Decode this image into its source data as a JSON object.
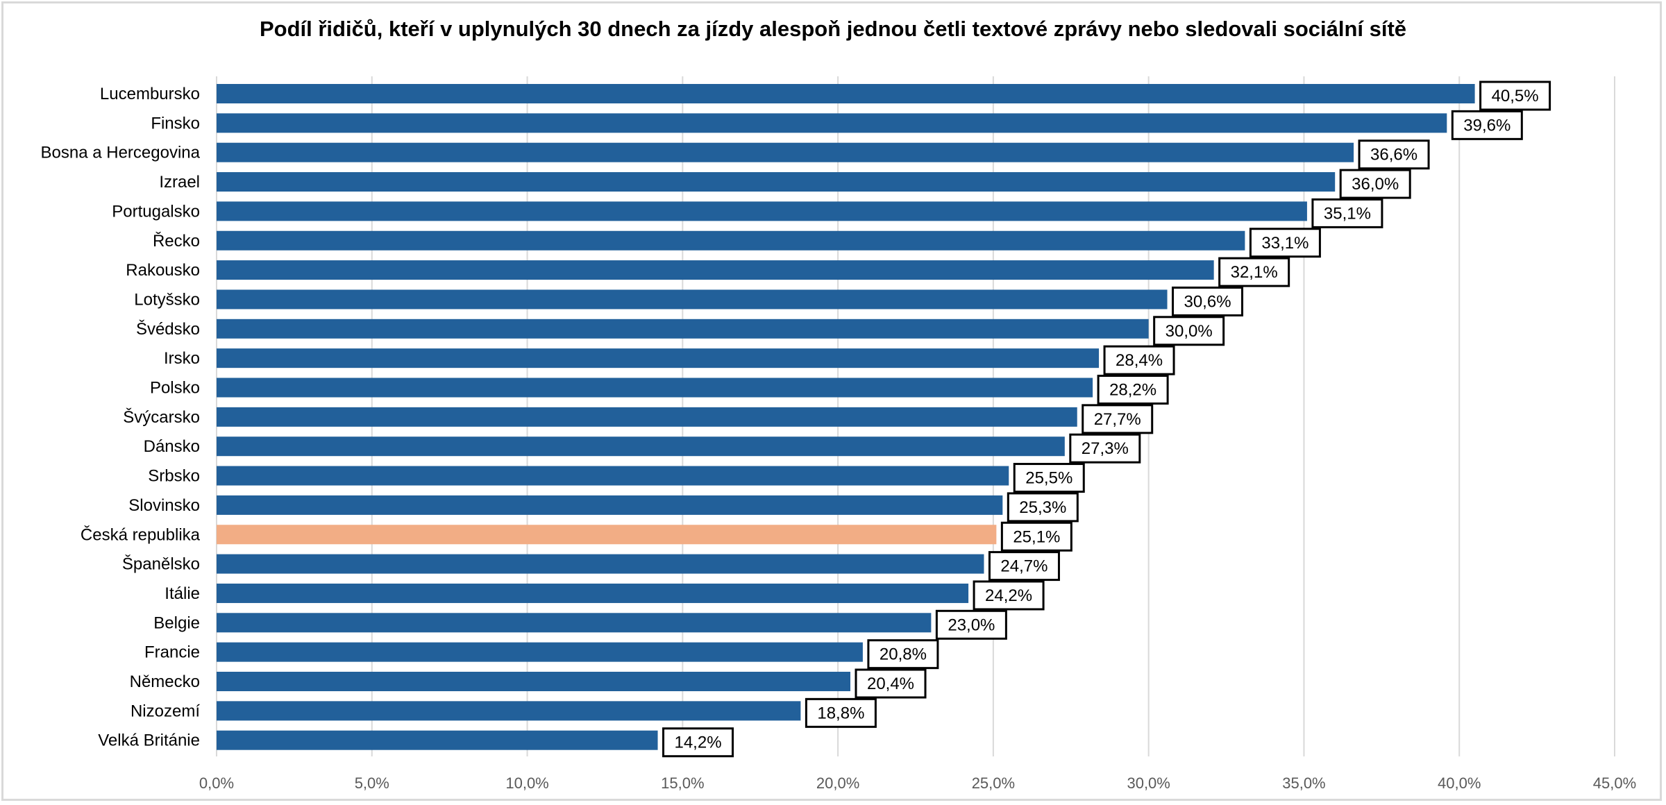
{
  "chart_data": {
    "type": "bar",
    "orientation": "horizontal",
    "title": "Podíl řidičů, kteří v uplynulých  30 dnech za jízdy alespoň jednou četli textové zprávy nebo sledovali sociální sítě",
    "categories": [
      "Lucembursko",
      "Finsko",
      "Bosna a Hercegovina",
      "Izrael",
      "Portugalsko",
      "Řecko",
      "Rakousko",
      "Lotyšsko",
      "Švédsko",
      "Irsko",
      "Polsko",
      "Švýcarsko",
      "Dánsko",
      "Srbsko",
      "Slovinsko",
      "Česká republika",
      "Španělsko",
      "Itálie",
      "Belgie",
      "Francie",
      "Německo",
      "Nizozemí",
      "Velká Británie"
    ],
    "values": [
      40.5,
      39.6,
      36.6,
      36.0,
      35.1,
      33.1,
      32.1,
      30.6,
      30.0,
      28.4,
      28.2,
      27.7,
      27.3,
      25.5,
      25.3,
      25.1,
      24.7,
      24.2,
      23.0,
      20.8,
      20.4,
      18.8,
      14.2
    ],
    "data_labels": [
      "40,5%",
      "39,6%",
      "36,6%",
      "36,0%",
      "35,1%",
      "33,1%",
      "32,1%",
      "30,6%",
      "30,0%",
      "28,4%",
      "28,2%",
      "27,7%",
      "27,3%",
      "25,5%",
      "25,3%",
      "25,1%",
      "24,7%",
      "24,2%",
      "23,0%",
      "20,8%",
      "20,4%",
      "18,8%",
      "14,2%"
    ],
    "highlight": "Česká republika",
    "xlim": [
      0,
      45
    ],
    "xticks": [
      "0,0%",
      "5,0%",
      "10,0%",
      "15,0%",
      "20,0%",
      "25,0%",
      "30,0%",
      "35,0%",
      "40,0%",
      "45,0%"
    ],
    "xlabel": "",
    "ylabel": "",
    "grid": true,
    "legend": "none",
    "colors": {
      "bar": "#22609a",
      "highlight": "#f2ad85",
      "grid": "#d9d9d9"
    }
  }
}
